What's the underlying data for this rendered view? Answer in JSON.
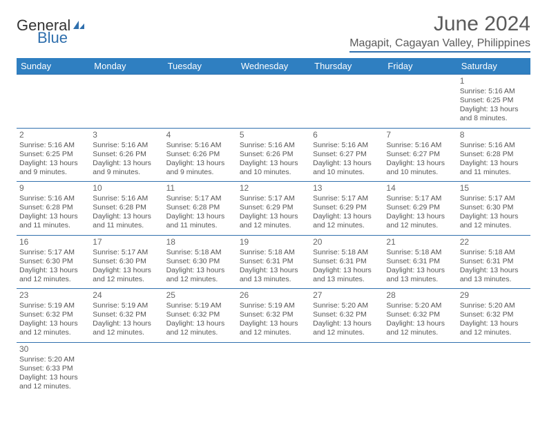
{
  "brand": {
    "part1": "General",
    "part2": "Blue"
  },
  "title": "June 2024",
  "location": "Magapit, Cagayan Valley, Philippines",
  "colors": {
    "header_bg": "#2f7fc1",
    "header_text": "#ffffff",
    "border": "#2f6fad",
    "text": "#555555",
    "title_text": "#5a5a5a",
    "background": "#ffffff"
  },
  "columns": [
    "Sunday",
    "Monday",
    "Tuesday",
    "Wednesday",
    "Thursday",
    "Friday",
    "Saturday"
  ],
  "weeks": [
    [
      null,
      null,
      null,
      null,
      null,
      null,
      {
        "n": "1",
        "sunrise": "5:16 AM",
        "sunset": "6:25 PM",
        "daylight": "13 hours and 8 minutes."
      }
    ],
    [
      {
        "n": "2",
        "sunrise": "5:16 AM",
        "sunset": "6:25 PM",
        "daylight": "13 hours and 9 minutes."
      },
      {
        "n": "3",
        "sunrise": "5:16 AM",
        "sunset": "6:26 PM",
        "daylight": "13 hours and 9 minutes."
      },
      {
        "n": "4",
        "sunrise": "5:16 AM",
        "sunset": "6:26 PM",
        "daylight": "13 hours and 9 minutes."
      },
      {
        "n": "5",
        "sunrise": "5:16 AM",
        "sunset": "6:26 PM",
        "daylight": "13 hours and 10 minutes."
      },
      {
        "n": "6",
        "sunrise": "5:16 AM",
        "sunset": "6:27 PM",
        "daylight": "13 hours and 10 minutes."
      },
      {
        "n": "7",
        "sunrise": "5:16 AM",
        "sunset": "6:27 PM",
        "daylight": "13 hours and 10 minutes."
      },
      {
        "n": "8",
        "sunrise": "5:16 AM",
        "sunset": "6:28 PM",
        "daylight": "13 hours and 11 minutes."
      }
    ],
    [
      {
        "n": "9",
        "sunrise": "5:16 AM",
        "sunset": "6:28 PM",
        "daylight": "13 hours and 11 minutes."
      },
      {
        "n": "10",
        "sunrise": "5:16 AM",
        "sunset": "6:28 PM",
        "daylight": "13 hours and 11 minutes."
      },
      {
        "n": "11",
        "sunrise": "5:17 AM",
        "sunset": "6:28 PM",
        "daylight": "13 hours and 11 minutes."
      },
      {
        "n": "12",
        "sunrise": "5:17 AM",
        "sunset": "6:29 PM",
        "daylight": "13 hours and 12 minutes."
      },
      {
        "n": "13",
        "sunrise": "5:17 AM",
        "sunset": "6:29 PM",
        "daylight": "13 hours and 12 minutes."
      },
      {
        "n": "14",
        "sunrise": "5:17 AM",
        "sunset": "6:29 PM",
        "daylight": "13 hours and 12 minutes."
      },
      {
        "n": "15",
        "sunrise": "5:17 AM",
        "sunset": "6:30 PM",
        "daylight": "13 hours and 12 minutes."
      }
    ],
    [
      {
        "n": "16",
        "sunrise": "5:17 AM",
        "sunset": "6:30 PM",
        "daylight": "13 hours and 12 minutes."
      },
      {
        "n": "17",
        "sunrise": "5:17 AM",
        "sunset": "6:30 PM",
        "daylight": "13 hours and 12 minutes."
      },
      {
        "n": "18",
        "sunrise": "5:18 AM",
        "sunset": "6:30 PM",
        "daylight": "13 hours and 12 minutes."
      },
      {
        "n": "19",
        "sunrise": "5:18 AM",
        "sunset": "6:31 PM",
        "daylight": "13 hours and 13 minutes."
      },
      {
        "n": "20",
        "sunrise": "5:18 AM",
        "sunset": "6:31 PM",
        "daylight": "13 hours and 13 minutes."
      },
      {
        "n": "21",
        "sunrise": "5:18 AM",
        "sunset": "6:31 PM",
        "daylight": "13 hours and 13 minutes."
      },
      {
        "n": "22",
        "sunrise": "5:18 AM",
        "sunset": "6:31 PM",
        "daylight": "13 hours and 13 minutes."
      }
    ],
    [
      {
        "n": "23",
        "sunrise": "5:19 AM",
        "sunset": "6:32 PM",
        "daylight": "13 hours and 12 minutes."
      },
      {
        "n": "24",
        "sunrise": "5:19 AM",
        "sunset": "6:32 PM",
        "daylight": "13 hours and 12 minutes."
      },
      {
        "n": "25",
        "sunrise": "5:19 AM",
        "sunset": "6:32 PM",
        "daylight": "13 hours and 12 minutes."
      },
      {
        "n": "26",
        "sunrise": "5:19 AM",
        "sunset": "6:32 PM",
        "daylight": "13 hours and 12 minutes."
      },
      {
        "n": "27",
        "sunrise": "5:20 AM",
        "sunset": "6:32 PM",
        "daylight": "13 hours and 12 minutes."
      },
      {
        "n": "28",
        "sunrise": "5:20 AM",
        "sunset": "6:32 PM",
        "daylight": "13 hours and 12 minutes."
      },
      {
        "n": "29",
        "sunrise": "5:20 AM",
        "sunset": "6:32 PM",
        "daylight": "13 hours and 12 minutes."
      }
    ],
    [
      {
        "n": "30",
        "sunrise": "5:20 AM",
        "sunset": "6:33 PM",
        "daylight": "13 hours and 12 minutes."
      },
      null,
      null,
      null,
      null,
      null,
      null
    ]
  ],
  "labels": {
    "sunrise_prefix": "Sunrise: ",
    "sunset_prefix": "Sunset: ",
    "daylight_prefix": "Daylight: "
  }
}
